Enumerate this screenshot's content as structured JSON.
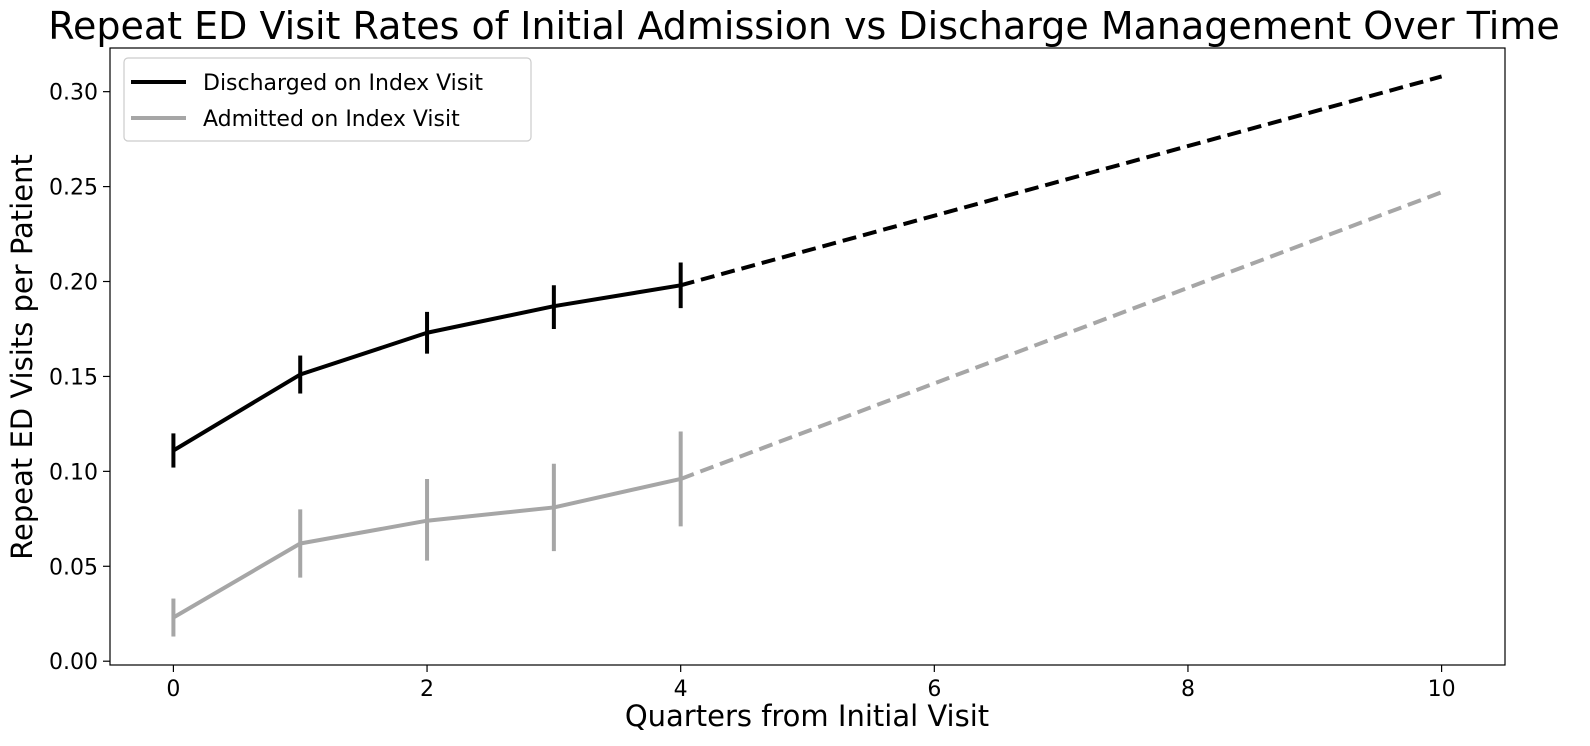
{
  "chart_data": {
    "type": "line",
    "title": "Repeat ED Visit Rates of Initial Admission vs Discharge Management Over Time",
    "xlabel": "Quarters from Initial Visit",
    "ylabel": "Repeat ED Visits per Patient",
    "xlim": [
      -0.5,
      10.5
    ],
    "ylim": [
      -0.002,
      0.323
    ],
    "x_ticks": [
      0,
      2,
      4,
      6,
      8,
      10
    ],
    "y_ticks": [
      0.0,
      0.05,
      0.1,
      0.15,
      0.2,
      0.25,
      0.3
    ],
    "x_tick_labels": [
      "0",
      "2",
      "4",
      "6",
      "8",
      "10"
    ],
    "y_tick_labels": [
      "0.00",
      "0.05",
      "0.10",
      "0.15",
      "0.20",
      "0.25",
      "0.30"
    ],
    "grid": false,
    "legend_position": "top-left",
    "series": [
      {
        "name": "Discharged on Index Visit",
        "color": "#000000",
        "observed": {
          "x": [
            0,
            1,
            2,
            3,
            4
          ],
          "y": [
            0.111,
            0.151,
            0.173,
            0.187,
            0.198
          ],
          "error_low": [
            0.102,
            0.141,
            0.162,
            0.175,
            0.186
          ],
          "error_high": [
            0.12,
            0.161,
            0.184,
            0.198,
            0.21
          ]
        },
        "projected": {
          "x": [
            4,
            10
          ],
          "y": [
            0.198,
            0.308
          ]
        }
      },
      {
        "name": "Admitted on Index Visit",
        "color": "#a6a6a6",
        "observed": {
          "x": [
            0,
            1,
            2,
            3,
            4
          ],
          "y": [
            0.023,
            0.062,
            0.074,
            0.081,
            0.096
          ],
          "error_low": [
            0.013,
            0.044,
            0.053,
            0.058,
            0.071
          ],
          "error_high": [
            0.033,
            0.08,
            0.096,
            0.104,
            0.121
          ]
        },
        "projected": {
          "x": [
            4,
            10
          ],
          "y": [
            0.096,
            0.247
          ]
        }
      }
    ]
  }
}
